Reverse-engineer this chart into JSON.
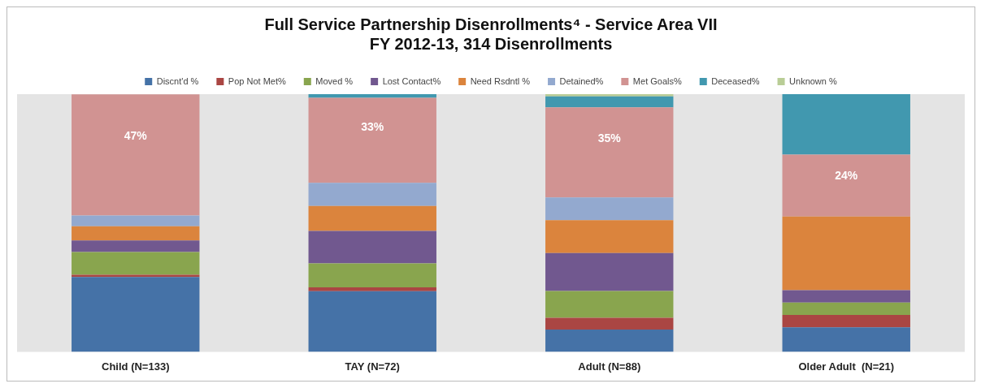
{
  "chart_data": {
    "type": "bar",
    "stacked": true,
    "title": "Full Service Partnership Disenrollments⁴ - Service Area VII",
    "subtitle": "FY 2012-13, 314 Disenrollments",
    "categories": [
      "Child (N=133)",
      "TAY (N=72)",
      "Adult (N=88)",
      "Older Adult  (N=21)"
    ],
    "legend": "top",
    "grid": false,
    "ylim": [
      0,
      100
    ],
    "tick_labels": "x",
    "series": [
      {
        "name": "Discnt'd %",
        "color": "#4572a7",
        "values": [
          29,
          23.5,
          8.6,
          9.5
        ]
      },
      {
        "name": "Pop Not Met%",
        "color": "#aa4643",
        "values": [
          0.9,
          1.5,
          4.6,
          4.8
        ]
      },
      {
        "name": "Moved %",
        "color": "#89a54e",
        "values": [
          8.8,
          9.3,
          10.4,
          4.8
        ]
      },
      {
        "name": "Lost Contact%",
        "color": "#71588f",
        "values": [
          4.5,
          12.6,
          14.7,
          4.8
        ]
      },
      {
        "name": "Need Rsdntl %",
        "color": "#db843d",
        "values": [
          5.5,
          9.7,
          12.8,
          28.6
        ]
      },
      {
        "name": "Detained%",
        "color": "#93a9cf",
        "values": [
          4.2,
          9,
          8.8,
          null
        ]
      },
      {
        "name": "Met Goals%",
        "color": "#d19392",
        "values": [
          47,
          33,
          35,
          24
        ],
        "value_labels": [
          "47%",
          "33%",
          "35%",
          "24%"
        ]
      },
      {
        "name": "Deceased%",
        "color": "#4198af",
        "values": [
          null,
          1.4,
          4.2,
          23.8
        ]
      },
      {
        "name": "Unknown %",
        "color": "#b9cd96",
        "values": [
          null,
          null,
          1,
          null
        ]
      }
    ]
  }
}
